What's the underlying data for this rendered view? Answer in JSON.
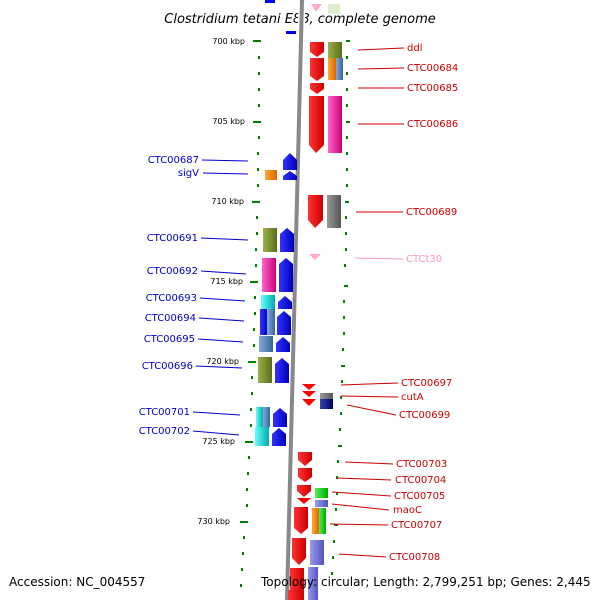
{
  "title": "Clostridium tetani E88, complete genome",
  "footer": {
    "accession": "Accession: NC_004557",
    "topology": "Topology: circular; Length: 2,799,251 bp; Genes: 2,445"
  },
  "scale_ticks": [
    {
      "label": "700 kbp"
    },
    {
      "label": "705 kbp"
    },
    {
      "label": "710 kbp"
    },
    {
      "label": "715 kbp"
    },
    {
      "label": "720 kbp"
    },
    {
      "label": "725 kbp"
    },
    {
      "label": "730 kbp"
    }
  ],
  "left_genes": [
    "CTC00687",
    "sigV",
    "CTC00691",
    "CTC00692",
    "CTC00693",
    "CTC00694",
    "CTC00695",
    "CTC00696",
    "CTC00701",
    "CTC00702"
  ],
  "right_genes": [
    "ddl",
    "CTC00684",
    "CTC00685",
    "CTC00686",
    "CTC00689",
    "CTCt30",
    "CTC00697",
    "cutA",
    "CTC00699",
    "CTC00703",
    "CTC00704",
    "CTC00705",
    "maoC",
    "CTC00707",
    "CTC00708"
  ],
  "colors": {
    "left_label": "#0000cc",
    "right_label": "#cc0000",
    "trna_label": "#ff99bb",
    "backbone": "#888888",
    "tick": "#008000",
    "forward_arrow": "#ff0000",
    "reverse_arrow": "#0000ff"
  }
}
